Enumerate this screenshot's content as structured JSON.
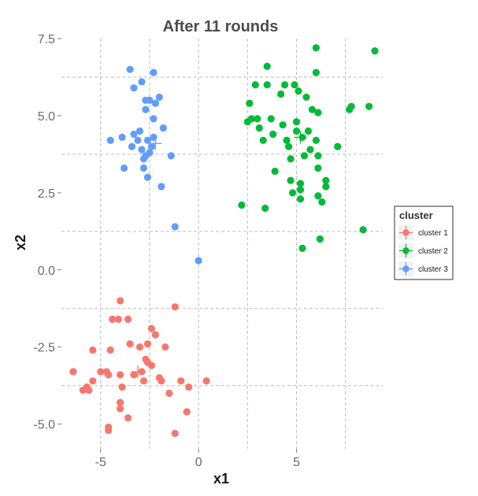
{
  "chart_data": {
    "type": "scatter",
    "title": "After 11 rounds",
    "xlabel": "x1",
    "ylabel": "x2",
    "xlim": [
      -7.0,
      9.4
    ],
    "ylim": [
      -5.8,
      7.5
    ],
    "x_ticks": [
      -5,
      0,
      5
    ],
    "x_tick_labels": [
      "-5",
      "0",
      "5"
    ],
    "y_ticks": [
      -5.0,
      -2.5,
      0.0,
      2.5,
      5.0,
      7.5
    ],
    "y_tick_labels": [
      "-5.0",
      "-2.5",
      "0.0",
      "2.5",
      "5.0",
      "7.5"
    ],
    "grid": true,
    "legend": {
      "title": "cluster",
      "placement": "right"
    },
    "series": [
      {
        "name": "cluster 1",
        "color": "#f8766d",
        "centroid": [
          -3.1,
          -3.3
        ],
        "points": [
          [
            -6.4,
            -3.3
          ],
          [
            -5.9,
            -3.9
          ],
          [
            -5.7,
            -3.8
          ],
          [
            -5.4,
            -3.6
          ],
          [
            -5.6,
            -3.9
          ],
          [
            -5.0,
            -3.3
          ],
          [
            -5.4,
            -2.6
          ],
          [
            -4.7,
            -3.3
          ],
          [
            -4.6,
            -3.4
          ],
          [
            -4.5,
            -2.6
          ],
          [
            -4.4,
            -1.6
          ],
          [
            -4.1,
            -1.6
          ],
          [
            -4.0,
            -1.0
          ],
          [
            -4.0,
            -3.4
          ],
          [
            -3.9,
            -3.8
          ],
          [
            -4.0,
            -4.3
          ],
          [
            -4.0,
            -4.5
          ],
          [
            -3.6,
            -4.8
          ],
          [
            -3.6,
            -1.6
          ],
          [
            -3.5,
            -2.4
          ],
          [
            -3.3,
            -3.4
          ],
          [
            -4.6,
            -5.1
          ],
          [
            -4.6,
            -5.2
          ],
          [
            -3.0,
            -2.5
          ],
          [
            -2.9,
            -3.3
          ],
          [
            -2.8,
            -3.6
          ],
          [
            -2.7,
            -2.9
          ],
          [
            -2.6,
            -2.4
          ],
          [
            -2.6,
            -3.0
          ],
          [
            -2.4,
            -1.9
          ],
          [
            -2.4,
            -3.1
          ],
          [
            -2.2,
            -2.1
          ],
          [
            -2.0,
            -3.5
          ],
          [
            -1.9,
            -3.6
          ],
          [
            -1.7,
            -2.5
          ],
          [
            -1.5,
            -4.0
          ],
          [
            -1.2,
            -1.2
          ],
          [
            -1.2,
            -5.3
          ],
          [
            -0.9,
            -3.6
          ],
          [
            -0.6,
            -4.6
          ],
          [
            -0.5,
            -3.8
          ],
          [
            0.4,
            -3.6
          ]
        ]
      },
      {
        "name": "cluster 2",
        "color": "#00ba38",
        "centroid": [
          5.2,
          4.3
        ],
        "points": [
          [
            2.2,
            2.1
          ],
          [
            2.5,
            4.8
          ],
          [
            2.6,
            5.4
          ],
          [
            2.7,
            4.9
          ],
          [
            2.9,
            6.0
          ],
          [
            3.0,
            4.9
          ],
          [
            3.1,
            4.6
          ],
          [
            3.3,
            4.2
          ],
          [
            3.4,
            2.0
          ],
          [
            3.5,
            6.6
          ],
          [
            3.5,
            6.0
          ],
          [
            3.7,
            4.9
          ],
          [
            3.8,
            4.4
          ],
          [
            3.9,
            3.2
          ],
          [
            4.2,
            5.7
          ],
          [
            4.3,
            4.7
          ],
          [
            4.4,
            6.0
          ],
          [
            4.5,
            4.2
          ],
          [
            4.6,
            4.0
          ],
          [
            4.7,
            3.6
          ],
          [
            4.7,
            2.9
          ],
          [
            4.8,
            2.5
          ],
          [
            4.9,
            6.0
          ],
          [
            5.0,
            4.8
          ],
          [
            5.0,
            4.5
          ],
          [
            5.1,
            5.8
          ],
          [
            5.2,
            2.8
          ],
          [
            5.2,
            2.6
          ],
          [
            5.2,
            2.3
          ],
          [
            5.3,
            4.3
          ],
          [
            5.3,
            0.7
          ],
          [
            5.4,
            3.7
          ],
          [
            5.5,
            5.6
          ],
          [
            5.6,
            4.5
          ],
          [
            5.7,
            3.9
          ],
          [
            5.8,
            5.2
          ],
          [
            6.0,
            7.2
          ],
          [
            6.0,
            6.4
          ],
          [
            6.0,
            4.2
          ],
          [
            6.1,
            3.7
          ],
          [
            6.1,
            3.3
          ],
          [
            6.1,
            5.1
          ],
          [
            6.1,
            2.4
          ],
          [
            6.2,
            1.0
          ],
          [
            6.3,
            2.2
          ],
          [
            6.5,
            2.9
          ],
          [
            6.5,
            2.7
          ],
          [
            7.1,
            4.0
          ],
          [
            7.7,
            5.2
          ],
          [
            7.8,
            5.3
          ],
          [
            8.4,
            1.3
          ],
          [
            8.7,
            5.3
          ],
          [
            9.0,
            7.1
          ]
        ]
      },
      {
        "name": "cluster 3",
        "color": "#619cff",
        "centroid": [
          -2.2,
          4.1
        ],
        "points": [
          [
            -4.5,
            4.2
          ],
          [
            -3.9,
            4.3
          ],
          [
            -3.8,
            3.3
          ],
          [
            -3.5,
            6.5
          ],
          [
            -3.4,
            4.0
          ],
          [
            -3.3,
            5.9
          ],
          [
            -3.3,
            4.4
          ],
          [
            -3.1,
            4.2
          ],
          [
            -3.0,
            4.5
          ],
          [
            -2.9,
            3.9
          ],
          [
            -2.9,
            6.1
          ],
          [
            -2.8,
            3.3
          ],
          [
            -2.8,
            3.6
          ],
          [
            -2.7,
            5.2
          ],
          [
            -2.7,
            5.5
          ],
          [
            -2.7,
            3.7
          ],
          [
            -2.6,
            4.2
          ],
          [
            -2.6,
            3.0
          ],
          [
            -2.5,
            5.5
          ],
          [
            -2.5,
            3.8
          ],
          [
            -2.4,
            4.0
          ],
          [
            -2.3,
            4.9
          ],
          [
            -2.3,
            6.4
          ],
          [
            -2.3,
            4.3
          ],
          [
            -2.2,
            5.4
          ],
          [
            -2.0,
            5.6
          ],
          [
            -1.9,
            2.7
          ],
          [
            -1.8,
            4.6
          ],
          [
            -1.4,
            3.7
          ],
          [
            -1.2,
            1.4
          ],
          [
            0.0,
            0.3
          ]
        ]
      }
    ]
  }
}
